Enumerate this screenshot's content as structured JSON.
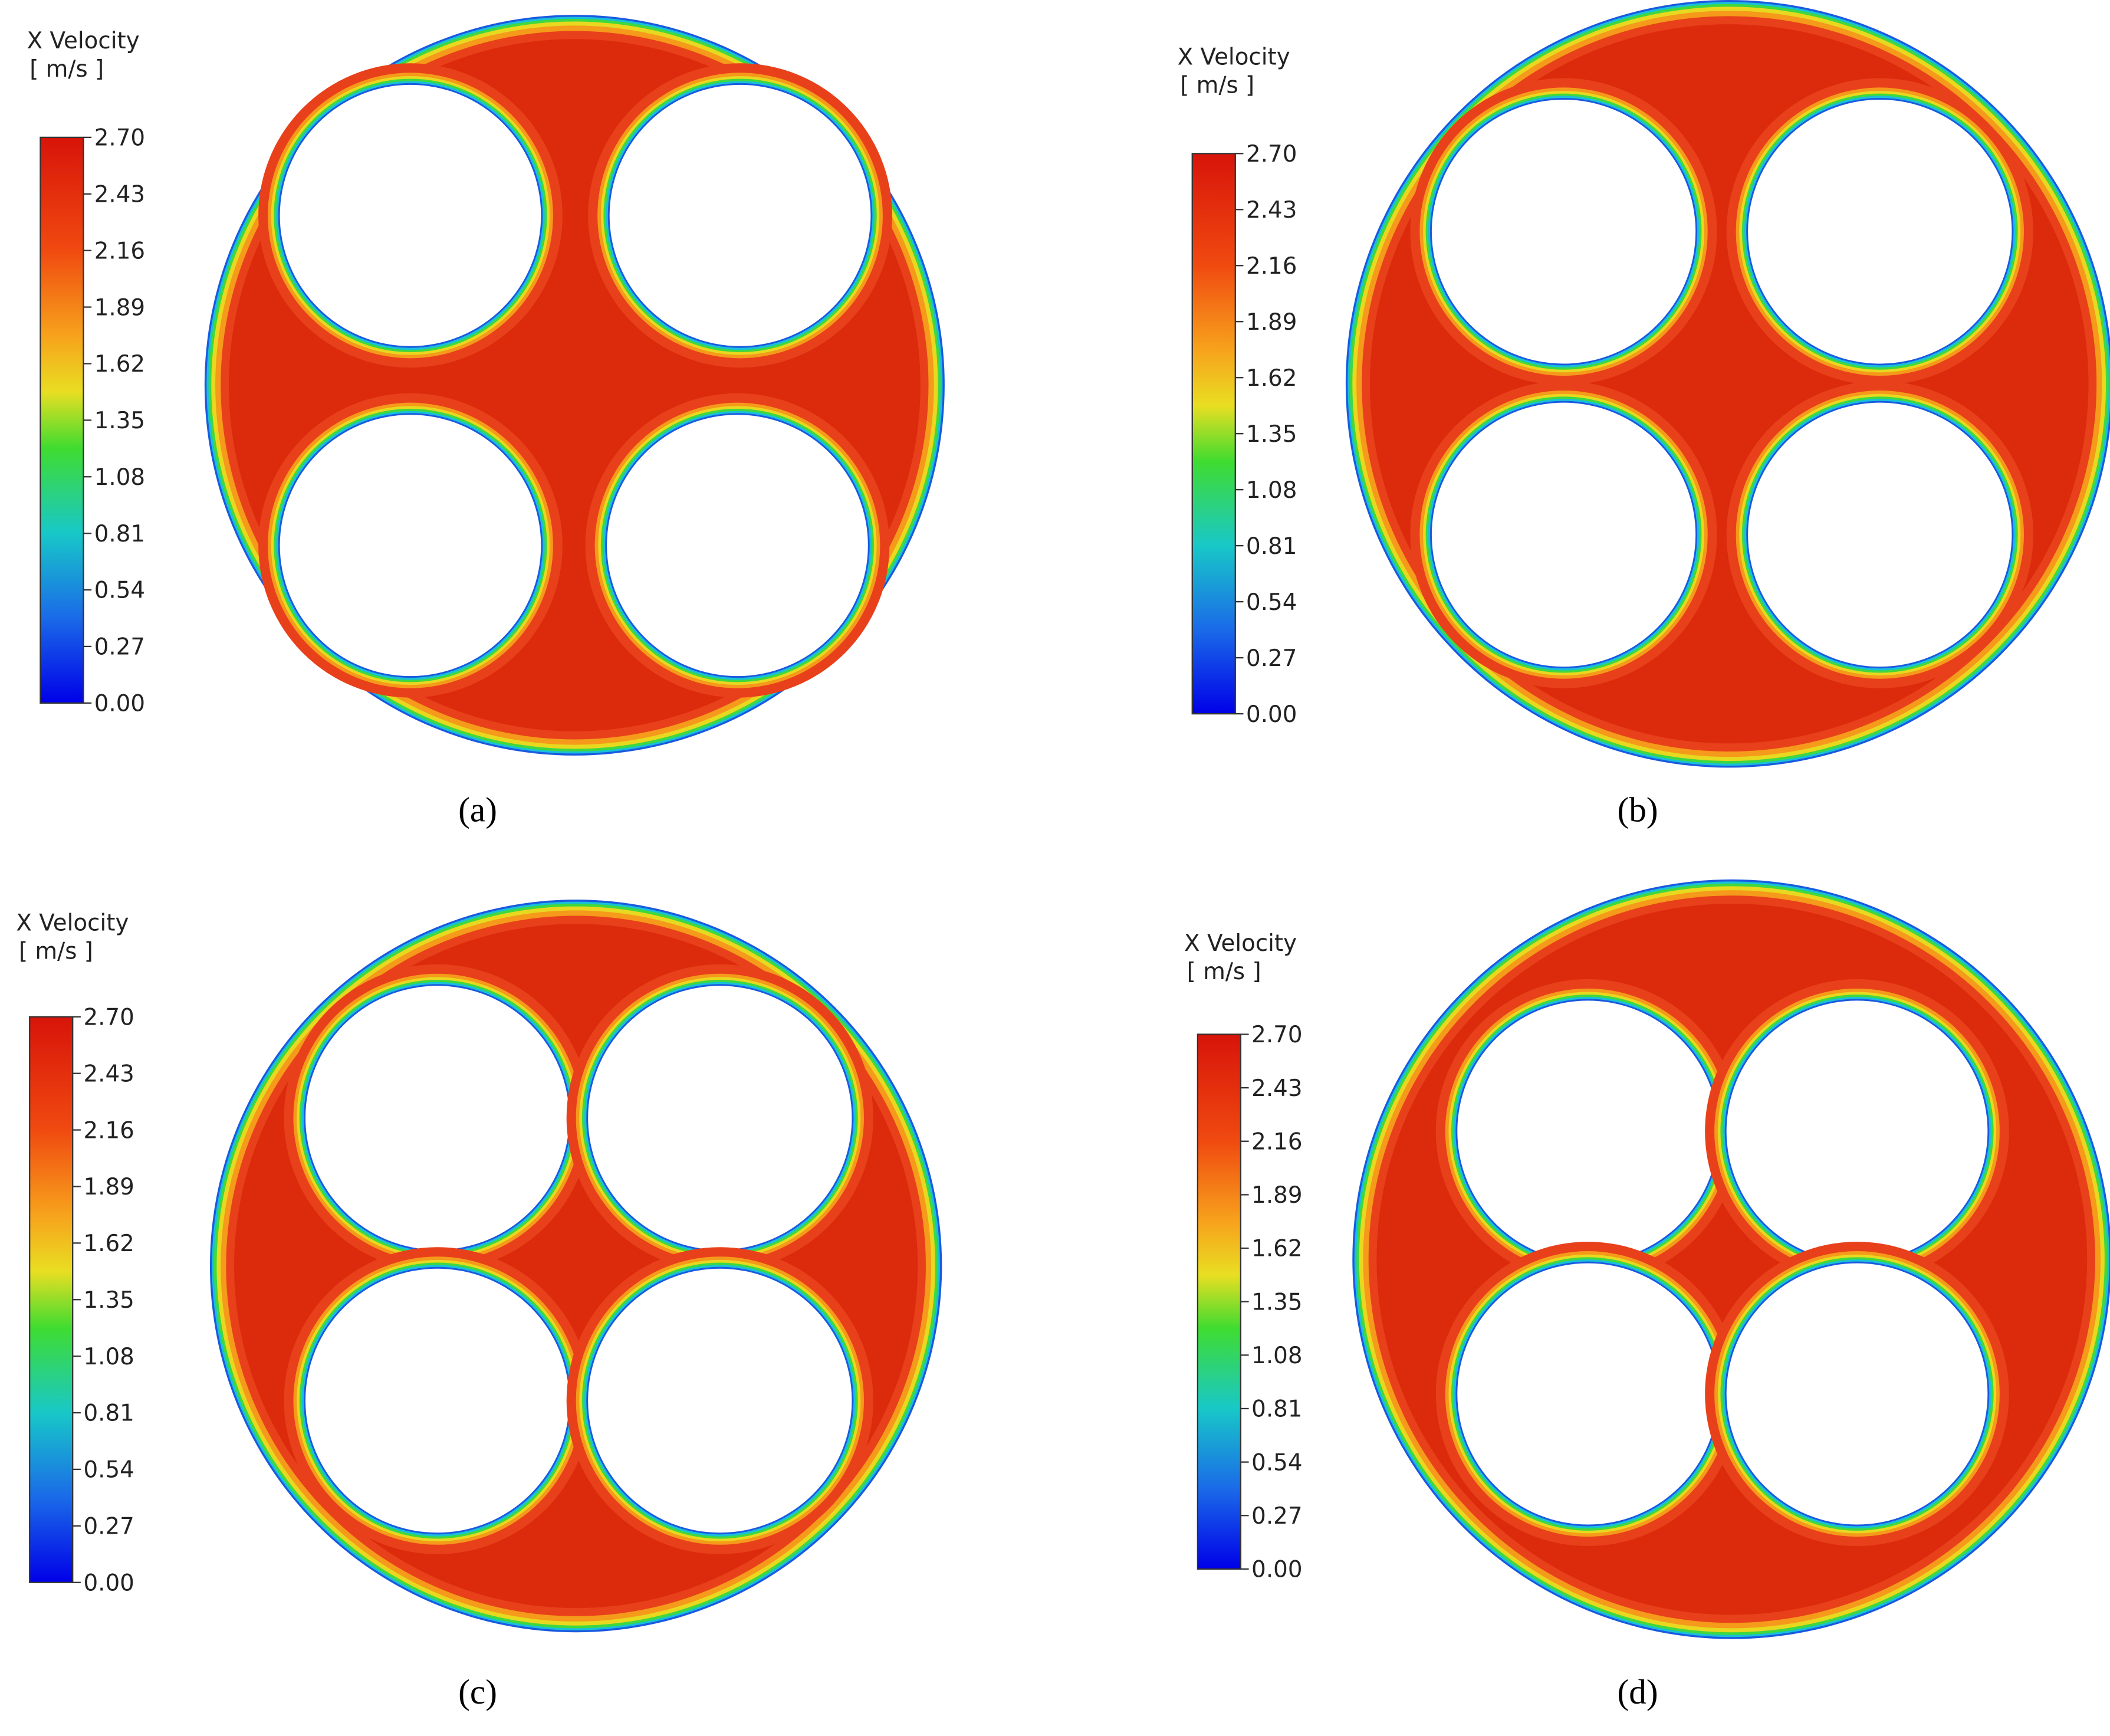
{
  "panels": [
    {
      "legend_title": "X Velocity",
      "legend_unit": "[ m/s ]",
      "ticks": [
        "2.70",
        "2.43",
        "2.16",
        "1.89",
        "1.62",
        "1.35",
        "1.08",
        "0.81",
        "0.54",
        "0.27",
        "0.00"
      ],
      "caption": "(a)"
    },
    {
      "legend_title": "X Velocity",
      "legend_unit": "[ m/s ]",
      "ticks": [
        "2.70",
        "2.43",
        "2.16",
        "1.89",
        "1.62",
        "1.35",
        "1.08",
        "0.81",
        "0.54",
        "0.27",
        "0.00"
      ],
      "caption": "(b)"
    },
    {
      "legend_title": "X Velocity",
      "legend_unit": "[ m/s ]",
      "ticks": [
        "2.70",
        "2.43",
        "2.16",
        "1.89",
        "1.62",
        "1.35",
        "1.08",
        "0.81",
        "0.54",
        "0.27",
        "0.00"
      ],
      "caption": "(c)"
    },
    {
      "legend_title": "X Velocity",
      "legend_unit": "[ m/s ]",
      "ticks": [
        "2.70",
        "2.43",
        "2.16",
        "1.89",
        "1.62",
        "1.35",
        "1.08",
        "0.81",
        "0.54",
        "0.27",
        "0.00"
      ],
      "caption": "(d)"
    }
  ]
}
